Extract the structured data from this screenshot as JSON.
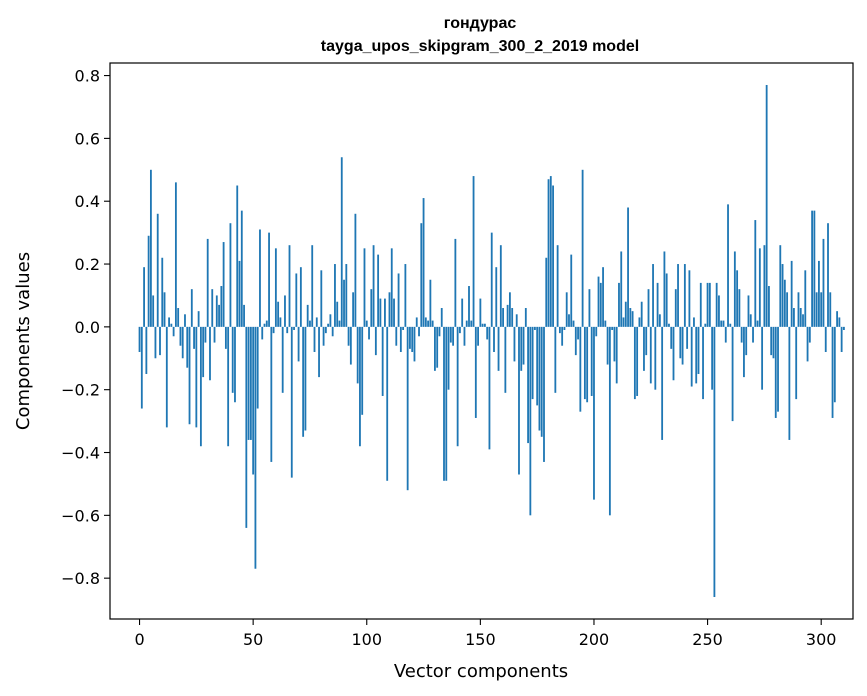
{
  "chart_data": {
    "type": "bar",
    "title": "гондурас",
    "subtitle": "tayga_upos_skipgram_300_2_2019 model",
    "xlabel": "Vector components",
    "ylabel": "Components values",
    "xlim": [
      -13,
      314
    ],
    "ylim": [
      -0.93,
      0.84
    ],
    "xticks": [
      0,
      50,
      100,
      150,
      200,
      250,
      300
    ],
    "yticks": [
      -0.8,
      -0.6,
      -0.4,
      -0.2,
      0.0,
      0.2,
      0.4,
      0.6,
      0.8
    ],
    "ytick_labels": [
      "−0.8",
      "−0.6",
      "−0.4",
      "−0.2",
      "0.0",
      "0.2",
      "0.4",
      "0.6",
      "0.8"
    ],
    "bar_color": "#1f77b4",
    "grid": false,
    "values": [
      -0.08,
      -0.26,
      0.19,
      -0.15,
      0.29,
      0.5,
      0.1,
      -0.1,
      0.36,
      -0.09,
      0.22,
      0.11,
      -0.32,
      0.03,
      0.01,
      -0.03,
      0.46,
      0.06,
      -0.06,
      -0.1,
      0.04,
      -0.13,
      -0.31,
      0.12,
      -0.07,
      -0.32,
      0.05,
      -0.38,
      -0.16,
      -0.05,
      0.28,
      -0.17,
      0.12,
      -0.05,
      0.1,
      0.07,
      0.13,
      0.27,
      -0.07,
      -0.38,
      0.33,
      -0.21,
      -0.24,
      0.45,
      0.21,
      0.37,
      0.07,
      -0.64,
      -0.36,
      -0.36,
      -0.47,
      -0.77,
      -0.26,
      0.31,
      -0.04,
      0.01,
      0.02,
      0.3,
      -0.43,
      -0.02,
      0.25,
      0.08,
      0.03,
      -0.21,
      0.1,
      -0.02,
      0.26,
      -0.48,
      -0.01,
      0.17,
      -0.11,
      0.19,
      -0.35,
      -0.33,
      0.07,
      0.02,
      0.26,
      -0.08,
      0.03,
      -0.16,
      0.18,
      -0.06,
      -0.02,
      0.01,
      0.04,
      -0.03,
      0.2,
      0.08,
      0.02,
      0.54,
      0.15,
      0.2,
      -0.06,
      -0.12,
      0.11,
      0.36,
      -0.18,
      -0.38,
      -0.28,
      0.25,
      0.02,
      -0.04,
      0.12,
      0.26,
      -0.09,
      0.23,
      0.09,
      -0.22,
      0.09,
      -0.49,
      0.11,
      0.25,
      0.09,
      -0.06,
      0.17,
      -0.08,
      -0.01,
      0.2,
      -0.52,
      -0.07,
      -0.08,
      -0.11,
      0.03,
      -0.03,
      0.33,
      0.41,
      0.03,
      0.02,
      0.15,
      0.02,
      -0.14,
      -0.13,
      -0.03,
      0.06,
      -0.49,
      -0.49,
      -0.2,
      -0.05,
      -0.06,
      0.28,
      -0.38,
      -0.02,
      0.09,
      -0.06,
      0.02,
      0.13,
      0.02,
      0.48,
      -0.29,
      -0.06,
      0.09,
      0.01,
      0.01,
      -0.04,
      -0.39,
      0.3,
      -0.08,
      0.19,
      -0.14,
      0.26,
      0.06,
      -0.21,
      0.07,
      0.11,
      0.06,
      -0.11,
      0.04,
      -0.47,
      -0.14,
      -0.12,
      0.06,
      -0.37,
      -0.6,
      -0.23,
      -0.01,
      -0.25,
      -0.33,
      -0.35,
      -0.43,
      0.22,
      0.47,
      0.48,
      0.45,
      -0.21,
      0.26,
      -0.02,
      -0.06,
      -0.01,
      0.11,
      0.04,
      0.23,
      0.02,
      -0.09,
      -0.04,
      -0.27,
      0.5,
      -0.23,
      -0.24,
      0.12,
      -0.22,
      -0.55,
      -0.03,
      0.16,
      0.14,
      0.19,
      0.02,
      -0.12,
      -0.6,
      -0.01,
      -0.11,
      -0.18,
      0.14,
      0.24,
      0.03,
      0.08,
      0.38,
      0.06,
      0.05,
      -0.23,
      -0.22,
      0.03,
      0.08,
      -0.14,
      -0.09,
      0.12,
      -0.18,
      0.2,
      -0.2,
      0.14,
      0.04,
      -0.36,
      0.24,
      0.17,
      0.01,
      -0.07,
      -0.17,
      0.12,
      0.2,
      -0.1,
      -0.12,
      0.2,
      -0.07,
      0.18,
      -0.19,
      0.03,
      -0.18,
      -0.15,
      0.14,
      -0.23,
      0.01,
      0.14,
      0.14,
      -0.2,
      -0.86,
      0.14,
      0.1,
      0.02,
      0.02,
      -0.05,
      0.39,
      0.01,
      -0.3,
      0.24,
      0.18,
      0.12,
      -0.05,
      -0.16,
      -0.09,
      0.1,
      0.04,
      -0.05,
      0.34,
      0.02,
      0.25,
      -0.2,
      0.26,
      0.77,
      0.13,
      -0.09,
      -0.1,
      -0.29,
      -0.27,
      0.26,
      0.2,
      0.15,
      0.11,
      -0.36,
      0.21,
      0.06,
      -0.23,
      0.11,
      0.06,
      0.04,
      0.18,
      -0.11,
      -0.05,
      0.37,
      0.37,
      0.11,
      0.21,
      0.11,
      0.28,
      -0.08,
      0.33,
      0.11,
      -0.29,
      -0.24,
      0.05,
      0.03,
      -0.08,
      -0.01
    ]
  }
}
